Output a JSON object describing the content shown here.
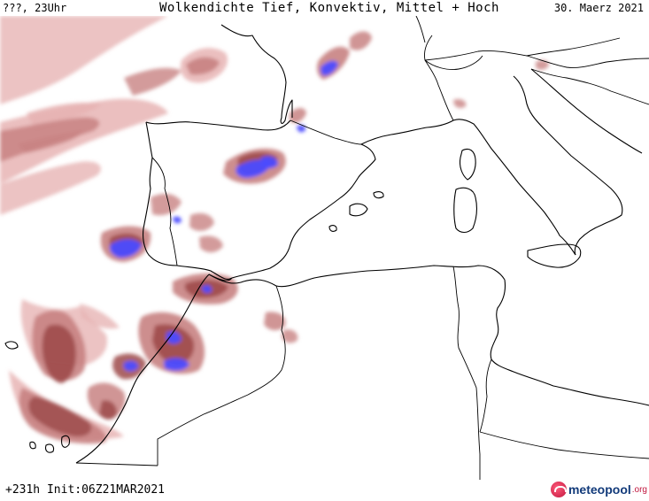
{
  "header": {
    "time_label": "???, 23Uhr",
    "title": "Wolkendichte  Tief, Konvektiv, Mittel + Hoch",
    "date_label": "30. Maerz 2021"
  },
  "footer": {
    "run_info": "+231h Init:06Z21MAR2021",
    "logo_brand": "meteopool",
    "logo_tld": ".org"
  },
  "map": {
    "region": "Westliches Mittelmeer",
    "layers": [
      "coastlines",
      "country-borders",
      "cloud-density"
    ],
    "colors": {
      "cloud_light": "#e7b4b4",
      "cloud_medium": "#c88282",
      "cloud_dense": "#9e4b4b",
      "cloud_convective": "#4b4bff",
      "coastline": "#000000",
      "background": "#ffffff"
    }
  }
}
